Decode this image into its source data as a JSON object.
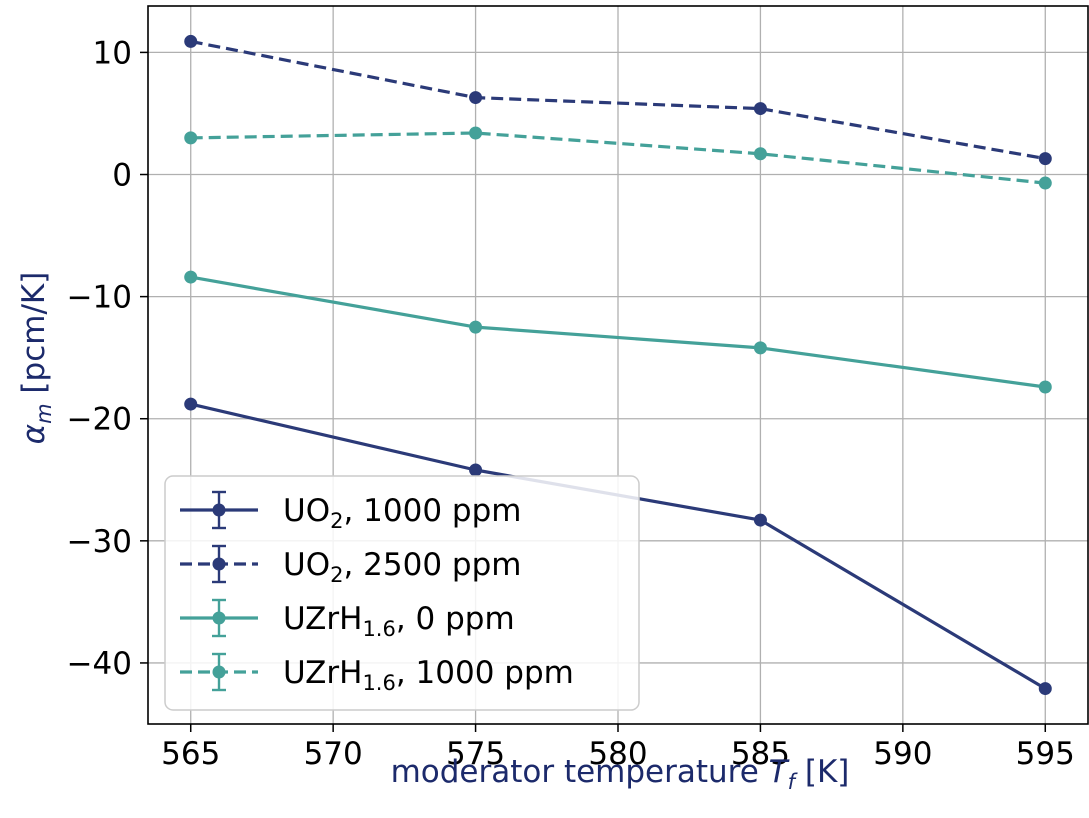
{
  "chart_data": {
    "type": "line",
    "x": [
      565,
      575,
      585,
      595
    ],
    "xlabel": "moderator temperature",
    "xlabel_symbol": "T",
    "xlabel_sub": "f",
    "xlabel_unit": "[K]",
    "ylabel_symbol": "α",
    "ylabel_sub": "m",
    "ylabel_unit": "[pcm/K]",
    "xlim": [
      563.5,
      596.5
    ],
    "ylim": [
      -45,
      13.8
    ],
    "xticks": [
      565,
      570,
      575,
      580,
      585,
      590,
      595
    ],
    "yticks": [
      10,
      0,
      -10,
      -20,
      -30,
      -40
    ],
    "ytick_labels": [
      "10",
      "0",
      "−10",
      "−20",
      "−30",
      "−40"
    ],
    "grid": true,
    "legend_position": "lower-left",
    "series": [
      {
        "name": "UO2, 1000 ppm",
        "label_main": "UO",
        "label_sub": "2",
        "label_rest": ", 1000 ppm",
        "values": [
          -18.8,
          -24.2,
          -28.3,
          -42.1
        ],
        "color": "#2b3a78",
        "linestyle": "solid"
      },
      {
        "name": "UO2, 2500 ppm",
        "label_main": "UO",
        "label_sub": "2",
        "label_rest": ", 2500 ppm",
        "values": [
          10.9,
          6.3,
          5.4,
          1.3
        ],
        "color": "#2b3a78",
        "linestyle": "dashed"
      },
      {
        "name": "UZrH1.6, 0 ppm",
        "label_main": "UZrH",
        "label_sub": "1.6",
        "label_rest": ", 0 ppm",
        "values": [
          -8.4,
          -12.5,
          -14.2,
          -17.4
        ],
        "color": "#44a199",
        "linestyle": "solid"
      },
      {
        "name": "UZrH1.6, 1000 ppm",
        "label_main": "UZrH",
        "label_sub": "1.6",
        "label_rest": ", 1000 ppm",
        "values": [
          3.0,
          3.4,
          1.7,
          -0.7
        ],
        "color": "#44a199",
        "linestyle": "dashed"
      }
    ],
    "axis_label_color": "#1c2a6b"
  }
}
